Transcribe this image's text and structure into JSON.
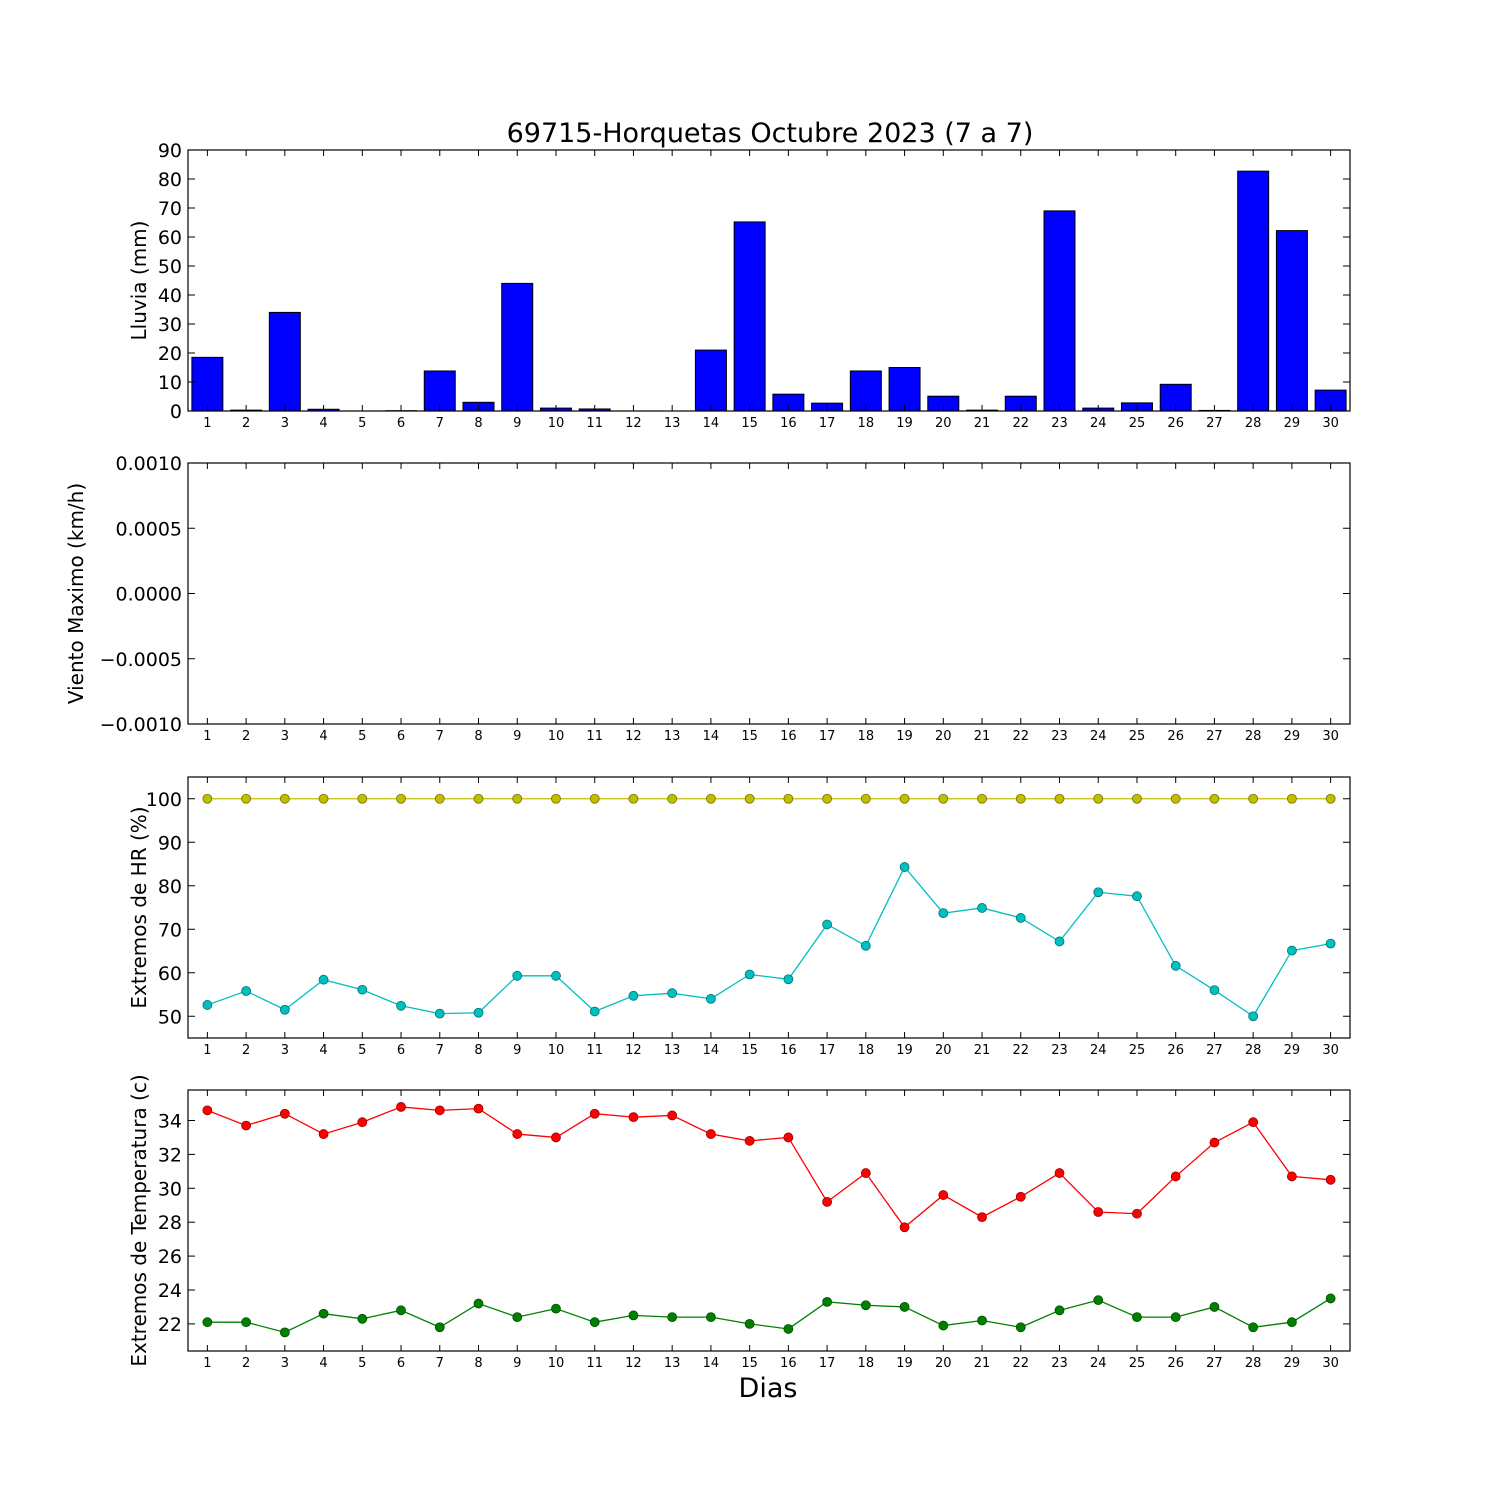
{
  "title": "69715-Horquetas Octubre 2023  (7 a 7)",
  "xlabel": "Dias",
  "days": [
    1,
    2,
    3,
    4,
    5,
    6,
    7,
    8,
    9,
    10,
    11,
    12,
    13,
    14,
    15,
    16,
    17,
    18,
    19,
    20,
    21,
    22,
    23,
    24,
    25,
    26,
    27,
    28,
    29,
    30
  ],
  "chart_data": [
    {
      "type": "bar",
      "ylabel": "Lluvia (mm)",
      "ylim": [
        0,
        90
      ],
      "yticks": [
        0,
        10,
        20,
        30,
        40,
        50,
        60,
        70,
        80,
        90
      ],
      "ytick_labels": [
        "0",
        "10",
        "20",
        "30",
        "40",
        "50",
        "60",
        "70",
        "80",
        "90"
      ],
      "color": "#0000ff",
      "series": [
        {
          "values": [
            18.5,
            0.3,
            34,
            0.6,
            0,
            0.1,
            13.8,
            3,
            44,
            1,
            0.7,
            0,
            0,
            21,
            65.2,
            5.8,
            2.7,
            13.8,
            15,
            5.1,
            0.3,
            5.1,
            69,
            1,
            2.8,
            9.2,
            0.2,
            82.7,
            62.2,
            7.2
          ]
        }
      ]
    },
    {
      "type": "line",
      "ylabel": "Viento Maximo (km/h)",
      "ylim": [
        -0.001,
        0.001
      ],
      "yticks": [
        -0.001,
        -0.0005,
        0,
        0.0005,
        0.001
      ],
      "ytick_labels": [
        "−0.0010",
        "−0.0005",
        "0.0000",
        "0.0005",
        "0.0010"
      ],
      "series": []
    },
    {
      "type": "line",
      "ylabel": "Extremos de HR (%)",
      "ylim": [
        45,
        105
      ],
      "yticks": [
        50,
        60,
        70,
        80,
        90,
        100
      ],
      "ytick_labels": [
        "50",
        "60",
        "70",
        "80",
        "90",
        "100"
      ],
      "series": [
        {
          "color": "#bfbf00",
          "values": [
            100,
            100,
            100,
            100,
            100,
            100,
            100,
            100,
            100,
            100,
            100,
            100,
            100,
            100,
            100,
            100,
            100,
            100,
            100,
            100,
            100,
            100,
            100,
            100,
            100,
            100,
            100,
            100,
            100,
            100
          ]
        },
        {
          "color": "#00bfbf",
          "values": [
            52.6,
            55.8,
            51.5,
            58.4,
            56.1,
            52.4,
            50.6,
            50.8,
            59.3,
            59.3,
            51.1,
            54.7,
            55.3,
            54,
            59.6,
            58.5,
            71.1,
            66.2,
            84.3,
            73.7,
            74.9,
            72.6,
            67.2,
            78.5,
            77.6,
            61.6,
            56,
            50,
            65.1,
            66.7
          ]
        }
      ]
    },
    {
      "type": "line",
      "ylabel": "Extremos de Temperatura (c)",
      "ylim": [
        20.4,
        35.8
      ],
      "yticks": [
        22,
        24,
        26,
        28,
        30,
        32,
        34
      ],
      "ytick_labels": [
        "22",
        "24",
        "26",
        "28",
        "30",
        "32",
        "34"
      ],
      "series": [
        {
          "color": "#ff0000",
          "values": [
            34.6,
            33.7,
            34.4,
            33.2,
            33.9,
            34.8,
            34.6,
            34.7,
            33.2,
            33,
            34.4,
            34.2,
            34.3,
            33.2,
            32.8,
            33,
            29.2,
            30.9,
            27.7,
            29.6,
            28.3,
            29.5,
            30.9,
            28.6,
            28.5,
            30.7,
            32.7,
            33.9,
            30.7,
            30.5
          ]
        },
        {
          "color": "#008000",
          "values": [
            22.1,
            22.1,
            21.5,
            22.6,
            22.3,
            22.8,
            21.8,
            23.2,
            22.4,
            22.9,
            22.1,
            22.5,
            22.4,
            22.4,
            22,
            21.7,
            23.3,
            23.1,
            23,
            21.9,
            22.2,
            21.8,
            22.8,
            23.4,
            22.4,
            22.4,
            23,
            21.8,
            22.1,
            23.5
          ]
        }
      ]
    }
  ]
}
